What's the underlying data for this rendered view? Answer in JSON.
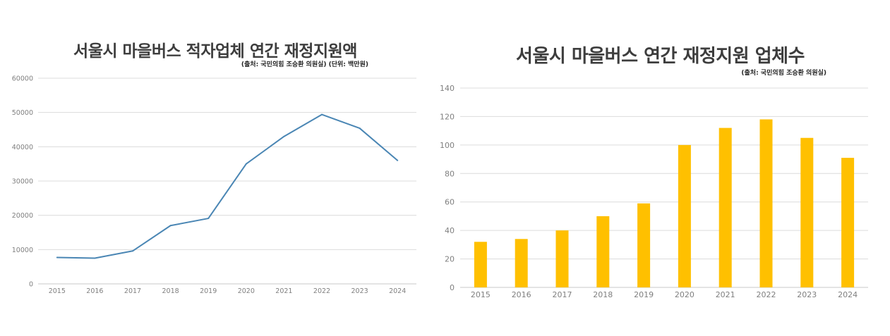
{
  "left": {
    "title": "서울시 마을버스 적자업체 연간 재정지원액",
    "source": "(출처: 국민의힘 조승환 의원실) (단위: 백만원)"
  },
  "right": {
    "title": "서울시 마을버스 연간 재정지원 업체수",
    "source": "(출처: 국민의힘 조승환 의원실)"
  },
  "chart_data": [
    {
      "type": "line",
      "title": "서울시 마을버스 적자업체 연간 재정지원액",
      "subtitle": "(출처: 국민의힘 조승환 의원실) (단위: 백만원)",
      "categories": [
        "2015",
        "2016",
        "2017",
        "2018",
        "2019",
        "2020",
        "2021",
        "2022",
        "2023",
        "2024"
      ],
      "values": [
        7700,
        7500,
        9600,
        17000,
        19100,
        35000,
        43000,
        49400,
        45400,
        36000
      ],
      "ylim": [
        0,
        60000
      ],
      "yticks": [
        0,
        10000,
        20000,
        30000,
        40000,
        50000,
        60000
      ],
      "grid": true,
      "color": "#4a86b4"
    },
    {
      "type": "bar",
      "title": "서울시 마을버스 연간 재정지원 업체수",
      "subtitle": "(출처: 국민의힘 조승환 의원실)",
      "categories": [
        "2015",
        "2016",
        "2017",
        "2018",
        "2019",
        "2020",
        "2021",
        "2022",
        "2023",
        "2024"
      ],
      "values": [
        32,
        34,
        40,
        50,
        59,
        100,
        112,
        118,
        105,
        91
      ],
      "ylim": [
        0,
        140
      ],
      "yticks": [
        0,
        20,
        40,
        60,
        80,
        100,
        120,
        140
      ],
      "grid": true,
      "color": "#ffc000"
    }
  ]
}
